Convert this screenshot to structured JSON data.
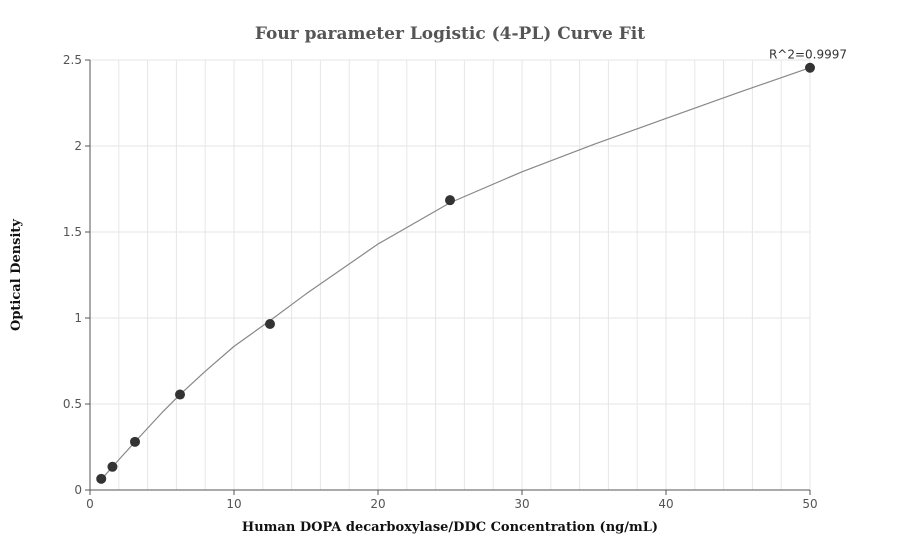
{
  "chart_data": {
    "type": "scatter",
    "title": "Four parameter Logistic (4-PL) Curve Fit",
    "xlabel": "Human DOPA decarboxylase/DDC Concentration (ng/mL)",
    "ylabel": "Optical Density",
    "xlim": [
      0,
      50
    ],
    "ylim": [
      0,
      2.5
    ],
    "x_ticks": [
      0,
      10,
      20,
      30,
      40,
      50
    ],
    "y_ticks": [
      0,
      0.5,
      1,
      1.5,
      2,
      2.5
    ],
    "x_tick_labels": [
      "0",
      "10",
      "20",
      "30",
      "40",
      "50"
    ],
    "y_tick_labels": [
      "0",
      "0.5",
      "1",
      "1.5",
      "2",
      "2.5"
    ],
    "grid": true,
    "series": [
      {
        "type": "scatter",
        "x": [
          0.78,
          1.56,
          3.125,
          6.25,
          12.5,
          25,
          50
        ],
        "y": [
          0.065,
          0.135,
          0.28,
          0.555,
          0.965,
          1.685,
          2.455
        ]
      },
      {
        "type": "line",
        "x": [
          0.78,
          1.56,
          3.125,
          5,
          6.25,
          8,
          10,
          12.5,
          15,
          20,
          25,
          30,
          35,
          40,
          45,
          50
        ],
        "y": [
          0.06,
          0.135,
          0.28,
          0.45,
          0.555,
          0.69,
          0.835,
          0.985,
          1.14,
          1.43,
          1.67,
          1.85,
          2.01,
          2.16,
          2.31,
          2.455
        ]
      }
    ],
    "annotation": {
      "text": "R^2=0.9997",
      "x": 50,
      "y": 2.455
    },
    "colors": {
      "point": "#333333",
      "curve": "#888888",
      "grid": "#e6e6e6",
      "axis": "#555555"
    }
  }
}
